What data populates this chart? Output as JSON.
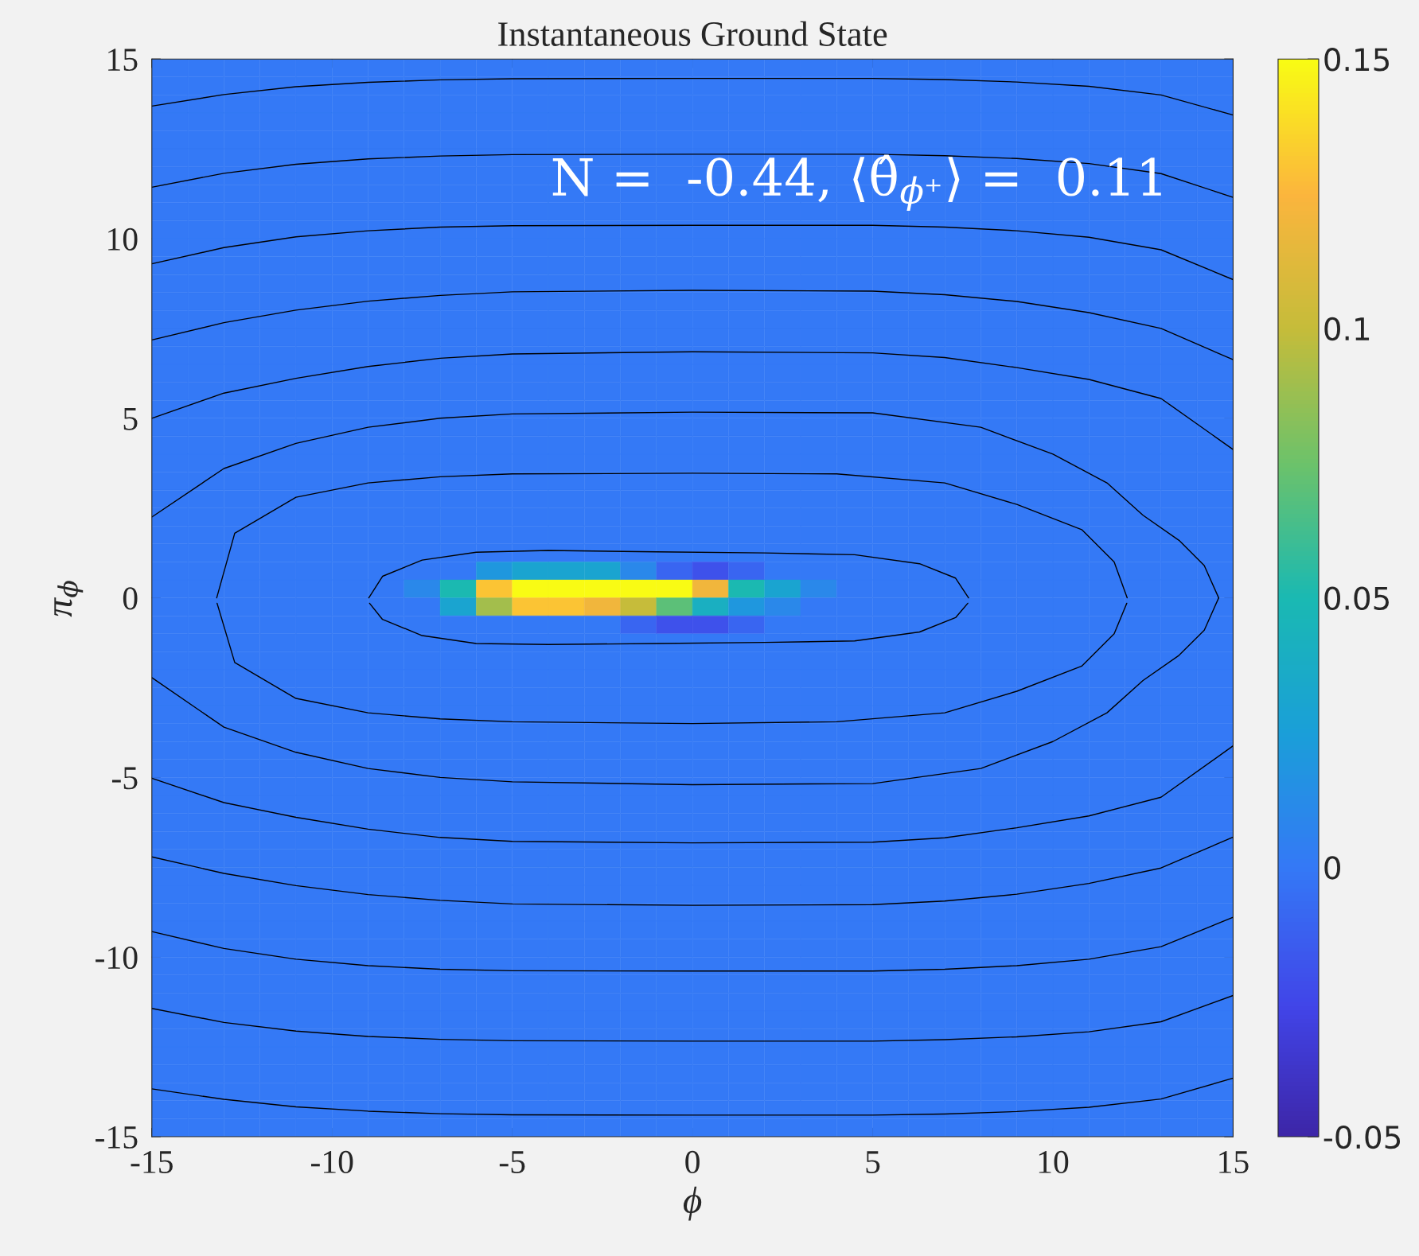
{
  "chart_data": {
    "type": "heatmap",
    "title": "Instantaneous Ground State",
    "xlabel": "ϕ",
    "ylabel": "π$_{ϕ}$",
    "annotations": [
      "N =  -0.44, ⟨θ̂$_{ϕ⁺}$⟩ =  0.11"
    ],
    "xlim": [
      -15,
      15
    ],
    "ylim": [
      -15,
      15
    ],
    "xticks": [
      -15,
      -10,
      -5,
      0,
      5,
      10,
      15
    ],
    "yticks": [
      -15,
      -10,
      -5,
      0,
      5,
      10,
      15
    ],
    "clim": [
      -0.05,
      0.15
    ],
    "cticks": [
      -0.05,
      0,
      0.05,
      0.1,
      0.15
    ],
    "cells": [
      [
        0,
        0,
        0,
        0,
        0,
        0,
        0,
        0,
        0,
        0,
        0,
        0,
        0,
        0,
        0,
        0,
        0,
        0,
        0,
        0,
        0,
        0,
        0,
        0,
        0,
        0,
        0,
        0,
        0,
        0
      ],
      [
        0,
        0,
        0,
        0,
        0,
        0,
        0,
        0,
        0,
        0,
        0,
        0,
        0,
        0,
        0,
        0,
        0,
        0,
        0,
        0,
        0,
        0,
        0,
        0,
        0,
        0,
        0,
        0,
        0,
        0
      ],
      [
        0,
        0,
        0,
        0,
        0,
        0,
        0,
        0,
        0,
        0,
        0,
        0,
        0,
        0,
        0,
        0,
        0,
        0,
        0,
        0,
        0,
        0,
        0,
        0,
        0,
        0,
        0,
        0,
        0,
        0
      ],
      [
        0,
        0,
        0,
        0,
        0,
        0,
        0,
        0,
        0,
        0,
        0,
        0,
        0,
        0,
        0,
        0,
        0,
        0,
        0,
        0,
        0,
        0,
        0,
        0,
        0,
        0,
        0,
        0,
        0,
        0
      ],
      [
        0,
        0,
        0,
        0,
        0,
        0,
        0,
        0,
        0,
        0,
        0,
        0,
        0,
        0,
        0,
        0,
        0,
        0,
        0,
        0,
        0,
        0,
        0,
        0,
        0,
        0,
        0,
        0,
        0,
        0
      ],
      [
        0,
        0,
        0,
        0,
        0,
        0,
        0,
        0,
        0,
        0,
        0,
        0,
        0,
        0,
        0,
        0,
        0,
        0,
        0,
        0,
        0,
        0,
        0,
        0,
        0,
        0,
        0,
        0,
        0,
        0
      ],
      [
        0,
        0,
        0,
        0,
        0,
        0,
        0,
        0,
        0,
        0,
        0,
        0,
        0,
        0,
        0,
        0,
        0,
        0,
        0,
        0,
        0,
        0,
        0,
        0,
        0,
        0,
        0,
        0,
        0,
        0
      ],
      [
        0,
        0,
        0,
        0,
        0,
        0,
        0,
        0,
        0,
        0,
        0,
        0,
        0,
        0,
        0,
        0,
        0,
        0,
        0,
        0,
        0,
        0,
        0,
        0,
        0,
        0,
        0,
        0,
        0,
        0
      ],
      [
        0,
        0,
        0,
        0,
        0,
        0,
        0,
        0,
        0,
        0,
        0,
        0,
        0,
        0,
        0,
        0,
        0,
        0,
        0,
        0,
        0,
        0,
        0,
        0,
        0,
        0,
        0,
        0,
        0,
        0
      ],
      [
        0,
        0,
        0,
        0,
        0,
        0,
        0,
        0,
        0,
        0,
        0,
        0,
        0,
        0,
        0,
        0,
        0,
        0,
        0,
        0,
        0,
        0,
        0,
        0,
        0,
        0,
        0,
        0,
        0,
        0
      ],
      [
        0,
        0,
        0,
        0,
        0,
        0,
        0,
        0,
        0,
        0,
        0,
        0,
        0,
        0,
        0,
        0,
        0,
        0,
        0,
        0,
        0,
        0,
        0,
        0,
        0,
        0,
        0,
        0,
        0,
        0
      ],
      [
        0,
        0,
        0,
        0,
        0,
        0,
        0,
        0,
        0,
        0,
        0,
        0,
        0,
        0,
        0,
        0,
        0,
        0,
        0,
        0,
        0,
        0,
        0,
        0,
        0,
        0,
        0,
        0,
        0,
        0
      ],
      [
        0,
        0,
        0,
        0,
        0,
        0,
        0,
        0,
        0,
        0,
        0,
        0,
        0,
        0,
        0,
        0,
        0,
        0,
        0,
        0,
        0,
        0,
        0,
        0,
        0,
        0,
        0,
        0,
        0,
        0
      ],
      [
        0,
        0,
        0,
        0,
        0,
        0,
        0,
        0,
        0,
        0,
        0,
        0,
        0,
        0,
        0,
        0,
        0,
        0,
        0,
        0,
        0,
        0,
        0,
        0,
        0,
        0,
        0,
        0,
        0,
        0
      ],
      [
        0,
        0,
        0,
        0,
        0,
        0,
        0,
        0,
        0,
        0,
        0,
        0,
        0,
        0,
        0,
        0,
        0,
        0,
        0,
        0,
        0,
        0,
        0,
        0,
        0,
        0,
        0,
        0,
        0,
        0
      ],
      [
        0,
        0,
        0,
        0,
        0,
        0,
        0,
        0,
        0,
        0,
        0,
        0,
        0,
        0,
        0,
        0,
        0,
        0,
        0,
        0,
        0,
        0,
        0,
        0,
        0,
        0,
        0,
        0,
        0,
        0
      ],
      [
        0,
        0,
        0,
        0,
        0,
        0,
        0,
        0,
        0,
        0,
        0,
        0,
        0,
        0,
        0,
        0,
        0,
        0,
        0,
        0,
        0,
        0,
        0,
        0,
        0,
        0,
        0,
        0,
        0,
        0
      ],
      [
        0,
        0,
        0,
        0,
        0,
        0,
        0,
        0,
        0,
        0,
        0,
        0,
        0,
        0,
        0,
        0,
        0,
        0,
        0,
        0,
        0,
        0,
        0,
        0,
        0,
        0,
        0,
        0,
        0,
        0
      ],
      [
        0,
        0,
        0,
        0,
        0,
        0,
        0,
        0,
        0,
        0,
        0,
        0,
        0,
        0,
        0,
        0,
        0,
        0,
        0,
        0,
        0,
        0,
        0,
        0,
        0,
        0,
        0,
        0,
        0,
        0
      ],
      [
        0,
        0,
        0,
        0,
        0,
        0,
        0,
        0,
        0,
        0,
        0,
        0,
        0,
        0,
        0,
        0,
        0,
        0,
        0,
        0,
        0,
        0,
        0,
        0,
        0,
        0,
        0,
        0,
        0,
        0
      ],
      [
        0,
        0,
        0,
        0,
        0,
        0,
        0,
        0,
        0,
        0,
        0,
        0,
        0,
        0,
        0,
        0,
        0,
        0,
        0,
        0,
        0,
        0,
        0,
        0,
        0,
        0,
        0,
        0,
        0,
        0
      ],
      [
        0,
        0,
        0,
        0,
        0,
        0,
        0,
        0,
        0,
        0,
        0,
        0,
        0,
        0,
        0,
        0,
        0,
        0,
        0,
        0,
        0,
        0,
        0,
        0,
        0,
        0,
        0,
        0,
        0,
        0
      ],
      [
        0,
        0,
        0,
        0,
        0,
        0,
        0,
        0,
        0,
        0,
        0,
        0,
        0,
        0,
        0,
        0,
        0,
        0,
        0,
        0,
        0,
        0,
        0,
        0,
        0,
        0,
        0,
        0,
        0,
        0
      ],
      [
        0,
        0,
        0,
        0,
        0,
        0,
        0,
        0,
        0,
        0,
        0,
        0,
        0,
        0,
        0,
        0,
        0,
        0,
        0,
        0,
        0,
        0,
        0,
        0,
        0,
        0,
        0,
        0,
        0,
        0
      ],
      [
        0,
        0,
        0,
        0,
        0,
        0,
        0,
        0,
        0,
        0,
        0,
        0,
        0,
        0,
        0,
        0,
        0,
        0,
        0,
        0,
        0,
        0,
        0,
        0,
        0,
        0,
        0,
        0,
        0,
        0
      ],
      [
        0,
        0,
        0,
        0,
        0,
        0,
        0,
        0,
        0,
        0,
        0,
        0,
        0,
        0,
        0,
        0,
        0,
        0,
        0,
        0,
        0,
        0,
        0,
        0,
        0,
        0,
        0,
        0,
        0,
        0
      ],
      [
        0,
        0,
        0,
        0,
        0,
        0,
        0,
        0,
        0,
        0,
        0,
        0,
        0,
        0,
        0,
        0,
        0,
        0,
        0,
        0,
        0,
        0,
        0,
        0,
        0,
        0,
        0,
        0,
        0,
        0
      ],
      [
        0,
        0,
        0,
        0,
        0,
        0,
        0,
        0,
        0,
        0,
        0,
        0,
        0,
        0,
        0,
        0,
        0,
        0,
        0,
        0,
        0,
        0,
        0,
        0,
        0,
        0,
        0,
        0,
        0,
        0
      ],
      [
        0,
        0,
        0,
        0,
        0,
        0,
        0,
        0,
        0,
        0.02,
        0.03,
        0.03,
        0.03,
        0.01,
        -0.01,
        -0.02,
        -0.01,
        0,
        0,
        0,
        0,
        0,
        0,
        0,
        0,
        0,
        0,
        0,
        0,
        0
      ],
      [
        0,
        0,
        0,
        0,
        0,
        0,
        0,
        0.01,
        0.05,
        0.13,
        0.15,
        0.15,
        0.15,
        0.15,
        0.15,
        0.12,
        0.05,
        0.03,
        0.01,
        0,
        0,
        0,
        0,
        0,
        0,
        0,
        0,
        0,
        0,
        0
      ],
      [
        0,
        0,
        0,
        0,
        0,
        0,
        0,
        0,
        0.03,
        0.09,
        0.13,
        0.13,
        0.12,
        0.1,
        0.07,
        0.04,
        0.02,
        0.01,
        0,
        0,
        0,
        0,
        0,
        0,
        0,
        0,
        0,
        0,
        0,
        0
      ],
      [
        0,
        0,
        0,
        0,
        0,
        0,
        0,
        0,
        0,
        0,
        0,
        0,
        0,
        -0.01,
        -0.02,
        -0.02,
        -0.01,
        0,
        0,
        0,
        0,
        0,
        0,
        0,
        0,
        0,
        0,
        0,
        0,
        0
      ],
      [
        0,
        0,
        0,
        0,
        0,
        0,
        0,
        0,
        0,
        0,
        0,
        0,
        0,
        0,
        0,
        0,
        0,
        0,
        0,
        0,
        0,
        0,
        0,
        0,
        0,
        0,
        0,
        0,
        0,
        0
      ],
      [
        0,
        0,
        0,
        0,
        0,
        0,
        0,
        0,
        0,
        0,
        0,
        0,
        0,
        0,
        0,
        0,
        0,
        0,
        0,
        0,
        0,
        0,
        0,
        0,
        0,
        0,
        0,
        0,
        0,
        0
      ],
      [
        0,
        0,
        0,
        0,
        0,
        0,
        0,
        0,
        0,
        0,
        0,
        0,
        0,
        0,
        0,
        0,
        0,
        0,
        0,
        0,
        0,
        0,
        0,
        0,
        0,
        0,
        0,
        0,
        0,
        0
      ],
      [
        0,
        0,
        0,
        0,
        0,
        0,
        0,
        0,
        0,
        0,
        0,
        0,
        0,
        0,
        0,
        0,
        0,
        0,
        0,
        0,
        0,
        0,
        0,
        0,
        0,
        0,
        0,
        0,
        0,
        0
      ],
      [
        0,
        0,
        0,
        0,
        0,
        0,
        0,
        0,
        0,
        0,
        0,
        0,
        0,
        0,
        0,
        0,
        0,
        0,
        0,
        0,
        0,
        0,
        0,
        0,
        0,
        0,
        0,
        0,
        0,
        0
      ],
      [
        0,
        0,
        0,
        0,
        0,
        0,
        0,
        0,
        0,
        0,
        0,
        0,
        0,
        0,
        0,
        0,
        0,
        0,
        0,
        0,
        0,
        0,
        0,
        0,
        0,
        0,
        0,
        0,
        0,
        0
      ],
      [
        0,
        0,
        0,
        0,
        0,
        0,
        0,
        0,
        0,
        0,
        0,
        0,
        0,
        0,
        0,
        0,
        0,
        0,
        0,
        0,
        0,
        0,
        0,
        0,
        0,
        0,
        0,
        0,
        0,
        0
      ],
      [
        0,
        0,
        0,
        0,
        0,
        0,
        0,
        0,
        0,
        0,
        0,
        0,
        0,
        0,
        0,
        0,
        0,
        0,
        0,
        0,
        0,
        0,
        0,
        0,
        0,
        0,
        0,
        0,
        0,
        0
      ],
      [
        0,
        0,
        0,
        0,
        0,
        0,
        0,
        0,
        0,
        0,
        0,
        0,
        0,
        0,
        0,
        0,
        0,
        0,
        0,
        0,
        0,
        0,
        0,
        0,
        0,
        0,
        0,
        0,
        0,
        0
      ],
      [
        0,
        0,
        0,
        0,
        0,
        0,
        0,
        0,
        0,
        0,
        0,
        0,
        0,
        0,
        0,
        0,
        0,
        0,
        0,
        0,
        0,
        0,
        0,
        0,
        0,
        0,
        0,
        0,
        0,
        0
      ],
      [
        0,
        0,
        0,
        0,
        0,
        0,
        0,
        0,
        0,
        0,
        0,
        0,
        0,
        0,
        0,
        0,
        0,
        0,
        0,
        0,
        0,
        0,
        0,
        0,
        0,
        0,
        0,
        0,
        0,
        0
      ],
      [
        0,
        0,
        0,
        0,
        0,
        0,
        0,
        0,
        0,
        0,
        0,
        0,
        0,
        0,
        0,
        0,
        0,
        0,
        0,
        0,
        0,
        0,
        0,
        0,
        0,
        0,
        0,
        0,
        0,
        0
      ],
      [
        0,
        0,
        0,
        0,
        0,
        0,
        0,
        0,
        0,
        0,
        0,
        0,
        0,
        0,
        0,
        0,
        0,
        0,
        0,
        0,
        0,
        0,
        0,
        0,
        0,
        0,
        0,
        0,
        0,
        0
      ],
      [
        0,
        0,
        0,
        0,
        0,
        0,
        0,
        0,
        0,
        0,
        0,
        0,
        0,
        0,
        0,
        0,
        0,
        0,
        0,
        0,
        0,
        0,
        0,
        0,
        0,
        0,
        0,
        0,
        0,
        0
      ],
      [
        0,
        0,
        0,
        0,
        0,
        0,
        0,
        0,
        0,
        0,
        0,
        0,
        0,
        0,
        0,
        0,
        0,
        0,
        0,
        0,
        0,
        0,
        0,
        0,
        0,
        0,
        0,
        0,
        0,
        0
      ],
      [
        0,
        0,
        0,
        0,
        0,
        0,
        0,
        0,
        0,
        0,
        0,
        0,
        0,
        0,
        0,
        0,
        0,
        0,
        0,
        0,
        0,
        0,
        0,
        0,
        0,
        0,
        0,
        0,
        0,
        0
      ],
      [
        0,
        0,
        0,
        0,
        0,
        0,
        0,
        0,
        0,
        0,
        0,
        0,
        0,
        0,
        0,
        0,
        0,
        0,
        0,
        0,
        0,
        0,
        0,
        0,
        0,
        0,
        0,
        0,
        0,
        0
      ],
      [
        0,
        0,
        0,
        0,
        0,
        0,
        0,
        0,
        0,
        0,
        0,
        0,
        0,
        0,
        0,
        0,
        0,
        0,
        0,
        0,
        0,
        0,
        0,
        0,
        0,
        0,
        0,
        0,
        0,
        0
      ],
      [
        0,
        0,
        0,
        0,
        0,
        0,
        0,
        0,
        0,
        0,
        0,
        0,
        0,
        0,
        0,
        0,
        0,
        0,
        0,
        0,
        0,
        0,
        0,
        0,
        0,
        0,
        0,
        0,
        0,
        0
      ],
      [
        0,
        0,
        0,
        0,
        0,
        0,
        0,
        0,
        0,
        0,
        0,
        0,
        0,
        0,
        0,
        0,
        0,
        0,
        0,
        0,
        0,
        0,
        0,
        0,
        0,
        0,
        0,
        0,
        0,
        0
      ],
      [
        0,
        0,
        0,
        0,
        0,
        0,
        0,
        0,
        0,
        0,
        0,
        0,
        0,
        0,
        0,
        0,
        0,
        0,
        0,
        0,
        0,
        0,
        0,
        0,
        0,
        0,
        0,
        0,
        0,
        0
      ],
      [
        0,
        0,
        0,
        0,
        0,
        0,
        0,
        0,
        0,
        0,
        0,
        0,
        0,
        0,
        0,
        0,
        0,
        0,
        0,
        0,
        0,
        0,
        0,
        0,
        0,
        0,
        0,
        0,
        0,
        0
      ],
      [
        0,
        0,
        0,
        0,
        0,
        0,
        0,
        0,
        0,
        0,
        0,
        0,
        0,
        0,
        0,
        0,
        0,
        0,
        0,
        0,
        0,
        0,
        0,
        0,
        0,
        0,
        0,
        0,
        0,
        0
      ],
      [
        0,
        0,
        0,
        0,
        0,
        0,
        0,
        0,
        0,
        0,
        0,
        0,
        0,
        0,
        0,
        0,
        0,
        0,
        0,
        0,
        0,
        0,
        0,
        0,
        0,
        0,
        0,
        0,
        0,
        0
      ],
      [
        0,
        0,
        0,
        0,
        0,
        0,
        0,
        0,
        0,
        0,
        0,
        0,
        0,
        0,
        0,
        0,
        0,
        0,
        0,
        0,
        0,
        0,
        0,
        0,
        0,
        0,
        0,
        0,
        0,
        0
      ],
      [
        0,
        0,
        0,
        0,
        0,
        0,
        0,
        0,
        0,
        0,
        0,
        0,
        0,
        0,
        0,
        0,
        0,
        0,
        0,
        0,
        0,
        0,
        0,
        0,
        0,
        0,
        0,
        0,
        0,
        0
      ],
      [
        0,
        0,
        0,
        0,
        0,
        0,
        0,
        0,
        0,
        0,
        0,
        0,
        0,
        0,
        0,
        0,
        0,
        0,
        0,
        0,
        0,
        0,
        0,
        0,
        0,
        0,
        0,
        0,
        0,
        0
      ],
      [
        0,
        0,
        0,
        0,
        0,
        0,
        0,
        0,
        0,
        0,
        0,
        0,
        0,
        0,
        0,
        0,
        0,
        0,
        0,
        0,
        0,
        0,
        0,
        0,
        0,
        0,
        0,
        0,
        0,
        0
      ]
    ],
    "series": [
      {
        "type": "line",
        "color": "#000000",
        "x": [
          -15,
          -13,
          -11,
          -9,
          -7,
          -5,
          0,
          5,
          7,
          9,
          11,
          13,
          15
        ],
        "values": [
          13.69,
          14.01,
          14.23,
          14.35,
          14.42,
          14.45,
          14.46,
          14.46,
          14.43,
          14.36,
          14.24,
          14.0,
          13.44
        ]
      },
      {
        "type": "line",
        "color": "#000000",
        "x": [
          -15,
          -13,
          -11,
          -9,
          -7,
          -5,
          0,
          5,
          7,
          9,
          11,
          13,
          15
        ],
        "values": [
          11.43,
          11.82,
          12.07,
          12.22,
          12.3,
          12.34,
          12.35,
          12.35,
          12.31,
          12.23,
          12.09,
          11.81,
          11.15
        ]
      },
      {
        "type": "line",
        "color": "#000000",
        "x": [
          -15,
          -13,
          -11,
          -9,
          -7,
          -5,
          0,
          5,
          7,
          9,
          11,
          13,
          15
        ],
        "values": [
          9.3,
          9.75,
          10.05,
          10.22,
          10.32,
          10.36,
          10.37,
          10.37,
          10.32,
          10.22,
          10.04,
          9.69,
          8.86
        ]
      },
      {
        "type": "line",
        "color": "#000000",
        "x": [
          -15,
          -13,
          -11,
          -9,
          -7,
          -5,
          0,
          5,
          7,
          9,
          11,
          13,
          15
        ],
        "values": [
          7.18,
          7.66,
          8.01,
          8.26,
          8.42,
          8.52,
          8.56,
          8.54,
          8.44,
          8.25,
          7.94,
          7.5,
          6.63
        ]
      },
      {
        "type": "line",
        "color": "#000000",
        "x": [
          -15,
          -13,
          -11,
          -9,
          -7,
          -5,
          0,
          5,
          7,
          9,
          11,
          13,
          15
        ],
        "values": [
          5.0,
          5.7,
          6.11,
          6.44,
          6.67,
          6.79,
          6.85,
          6.82,
          6.69,
          6.41,
          6.08,
          5.55,
          4.13
        ]
      },
      {
        "type": "line",
        "color": "#000000",
        "x": [
          -15,
          -13,
          -11,
          -9,
          -7,
          -5,
          0,
          5,
          8,
          10,
          11.5,
          12.5,
          13.5,
          14.2,
          14.6
        ],
        "values": [
          2.25,
          3.6,
          4.3,
          4.75,
          5.0,
          5.12,
          5.17,
          5.15,
          4.75,
          4.0,
          3.2,
          2.3,
          1.6,
          0.9,
          0
        ]
      },
      {
        "type": "line",
        "color": "#000000",
        "x": [
          -13.2,
          -12.7,
          -11,
          -9,
          -7,
          -5,
          0,
          4,
          7,
          9,
          10.8,
          11.7,
          12.06
        ],
        "values": [
          0,
          1.8,
          2.8,
          3.2,
          3.37,
          3.45,
          3.47,
          3.45,
          3.2,
          2.6,
          1.9,
          1.0,
          0
        ]
      },
      {
        "type": "line",
        "color": "#000000",
        "x": [
          -8.98,
          -8.6,
          -7.5,
          -6,
          -4,
          -1,
          2,
          4.5,
          6.3,
          7.3,
          7.66
        ],
        "values": [
          0,
          0.6,
          1.05,
          1.27,
          1.32,
          1.28,
          1.25,
          1.2,
          0.95,
          0.55,
          0
        ]
      },
      {
        "type": "line",
        "color": "#000000",
        "x": [
          -8.96,
          -8.6,
          -7.5,
          -6,
          -4,
          -1,
          2,
          4.5,
          6.3,
          7.3,
          7.64
        ],
        "values": [
          -0.15,
          -0.6,
          -1.05,
          -1.27,
          -1.3,
          -1.27,
          -1.24,
          -1.2,
          -0.95,
          -0.55,
          -0.15
        ]
      },
      {
        "type": "line",
        "color": "#000000",
        "x": [
          -13.19,
          -12.7,
          -11,
          -9,
          -7,
          -5,
          0,
          4,
          7,
          9,
          10.8,
          11.7,
          12.05
        ],
        "values": [
          -0.15,
          -1.8,
          -2.8,
          -3.2,
          -3.37,
          -3.45,
          -3.5,
          -3.45,
          -3.2,
          -2.6,
          -1.9,
          -1.0,
          -0.15
        ]
      },
      {
        "type": "line",
        "color": "#000000",
        "x": [
          -15,
          -13,
          -11,
          -9,
          -7,
          -5,
          0,
          5,
          8,
          10,
          11.5,
          12.5,
          13.5,
          14.2,
          14.6
        ],
        "values": [
          -2.22,
          -3.6,
          -4.3,
          -4.75,
          -5.0,
          -5.12,
          -5.2,
          -5.17,
          -4.75,
          -4.0,
          -3.2,
          -2.3,
          -1.6,
          -0.9,
          0
        ]
      },
      {
        "type": "line",
        "color": "#000000",
        "x": [
          -15,
          -13,
          -11,
          -9,
          -7,
          -5,
          0,
          5,
          7,
          9,
          11,
          13,
          15
        ],
        "values": [
          -5.02,
          -5.7,
          -6.11,
          -6.44,
          -6.67,
          -6.78,
          -6.82,
          -6.8,
          -6.68,
          -6.4,
          -6.07,
          -5.55,
          -4.12
        ]
      },
      {
        "type": "line",
        "color": "#000000",
        "x": [
          -15,
          -13,
          -11,
          -9,
          -7,
          -5,
          0,
          5,
          7,
          9,
          11,
          13,
          15
        ],
        "values": [
          -7.21,
          -7.67,
          -8.01,
          -8.26,
          -8.42,
          -8.52,
          -8.56,
          -8.54,
          -8.44,
          -8.25,
          -7.95,
          -7.52,
          -6.66
        ]
      },
      {
        "type": "line",
        "color": "#000000",
        "x": [
          -15,
          -13,
          -11,
          -9,
          -7,
          -5,
          0,
          5,
          7,
          9,
          11,
          13,
          15
        ],
        "values": [
          -9.29,
          -9.76,
          -10.06,
          -10.24,
          -10.34,
          -10.38,
          -10.39,
          -10.39,
          -10.34,
          -10.24,
          -10.06,
          -9.71,
          -8.89
        ]
      },
      {
        "type": "line",
        "color": "#000000",
        "x": [
          -15,
          -13,
          -11,
          -9,
          -7,
          -5,
          0,
          5,
          7,
          9,
          11,
          13,
          15
        ],
        "values": [
          -11.43,
          -11.82,
          -12.06,
          -12.21,
          -12.29,
          -12.33,
          -12.34,
          -12.34,
          -12.3,
          -12.22,
          -12.08,
          -11.8,
          -11.07
        ]
      },
      {
        "type": "line",
        "color": "#000000",
        "x": [
          -15,
          -13,
          -11,
          -9,
          -7,
          -5,
          0,
          5,
          7,
          9,
          11,
          13,
          15
        ],
        "values": [
          -13.67,
          -13.96,
          -14.17,
          -14.29,
          -14.36,
          -14.39,
          -14.4,
          -14.4,
          -14.37,
          -14.3,
          -14.18,
          -13.95,
          -13.37
        ]
      }
    ]
  }
}
